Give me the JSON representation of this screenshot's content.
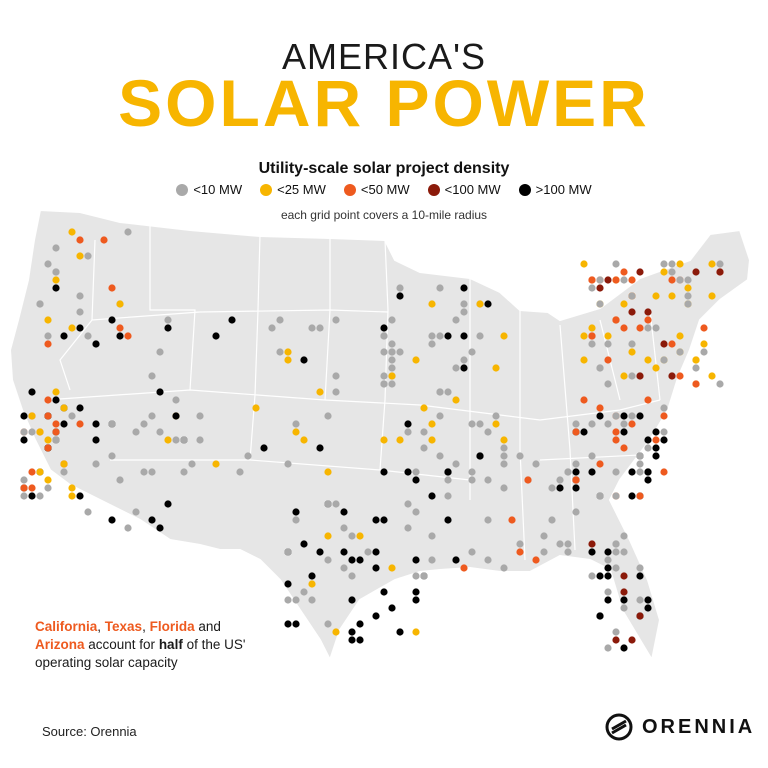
{
  "header": {
    "supertitle": "AMERICA'S",
    "title": "SOLAR POWER",
    "subtitle": "Utility-scale solar project density",
    "note": "each grid point covers a 10-mile radius"
  },
  "legend": [
    {
      "label": "<10 MW",
      "color": "#a9a9a9"
    },
    {
      "label": "<25 MW",
      "color": "#f7b500"
    },
    {
      "label": "<50 MW",
      "color": "#ee5a1f"
    },
    {
      "label": "<100 MW",
      "color": "#8b1a0a"
    },
    {
      "label": ">100 MW",
      "color": "#000000"
    }
  ],
  "annotation": {
    "state1": "California",
    "sep1": ", ",
    "state2": "Texas",
    "sep2": ", ",
    "state3": "Florida",
    "and": " and",
    "state4": "Arizona",
    "text1": " account for ",
    "half": "half",
    "text2": " of the US' operating solar capacity"
  },
  "footer": {
    "source": "Source: Orennia",
    "brand": "ORENNIA"
  },
  "map": {
    "land_color": "#e6e6e6",
    "border_color": "#ffffff",
    "dot_clusters": [
      {
        "region": "California",
        "color": "#000000",
        "count": 18
      },
      {
        "region": "California",
        "color": "#ee5a1f",
        "count": 14
      },
      {
        "region": "California",
        "color": "#f7b500",
        "count": 10
      },
      {
        "region": "California",
        "color": "#a9a9a9",
        "count": 10
      },
      {
        "region": "Arizona",
        "color": "#000000",
        "count": 8
      },
      {
        "region": "Arizona",
        "color": "#a9a9a9",
        "count": 12
      },
      {
        "region": "Texas",
        "color": "#000000",
        "count": 30
      },
      {
        "region": "Texas",
        "color": "#a9a9a9",
        "count": 20
      },
      {
        "region": "Texas",
        "color": "#f7b500",
        "count": 6
      },
      {
        "region": "Florida",
        "color": "#000000",
        "count": 14
      },
      {
        "region": "Florida",
        "color": "#8b1a0a",
        "count": 6
      },
      {
        "region": "Florida",
        "color": "#a9a9a9",
        "count": 14
      },
      {
        "region": "Midwest",
        "color": "#a9a9a9",
        "count": 45
      },
      {
        "region": "Midwest",
        "color": "#f7b500",
        "count": 14
      },
      {
        "region": "Midwest",
        "color": "#000000",
        "count": 12
      },
      {
        "region": "Northeast",
        "color": "#f7b500",
        "count": 30
      },
      {
        "region": "Northeast",
        "color": "#ee5a1f",
        "count": 22
      },
      {
        "region": "Northeast",
        "color": "#a9a9a9",
        "count": 30
      },
      {
        "region": "Northeast",
        "color": "#8b1a0a",
        "count": 10
      },
      {
        "region": "Carolinas",
        "color": "#000000",
        "count": 22
      },
      {
        "region": "Carolinas",
        "color": "#ee5a1f",
        "count": 16
      },
      {
        "region": "Carolinas",
        "color": "#a9a9a9",
        "count": 18
      },
      {
        "region": "Northwest",
        "color": "#a9a9a9",
        "count": 14
      },
      {
        "region": "Northwest",
        "color": "#ee5a1f",
        "count": 6
      },
      {
        "region": "Northwest",
        "color": "#f7b500",
        "count": 6
      },
      {
        "region": "Northwest",
        "color": "#000000",
        "count": 6
      },
      {
        "region": "Mountain",
        "color": "#a9a9a9",
        "count": 24
      },
      {
        "region": "Mountain",
        "color": "#f7b500",
        "count": 10
      },
      {
        "region": "Mountain",
        "color": "#000000",
        "count": 8
      },
      {
        "region": "Southeast",
        "color": "#a9a9a9",
        "count": 30
      },
      {
        "region": "Southeast",
        "color": "#000000",
        "count": 8
      },
      {
        "region": "Southeast",
        "color": "#ee5a1f",
        "count": 6
      }
    ]
  }
}
